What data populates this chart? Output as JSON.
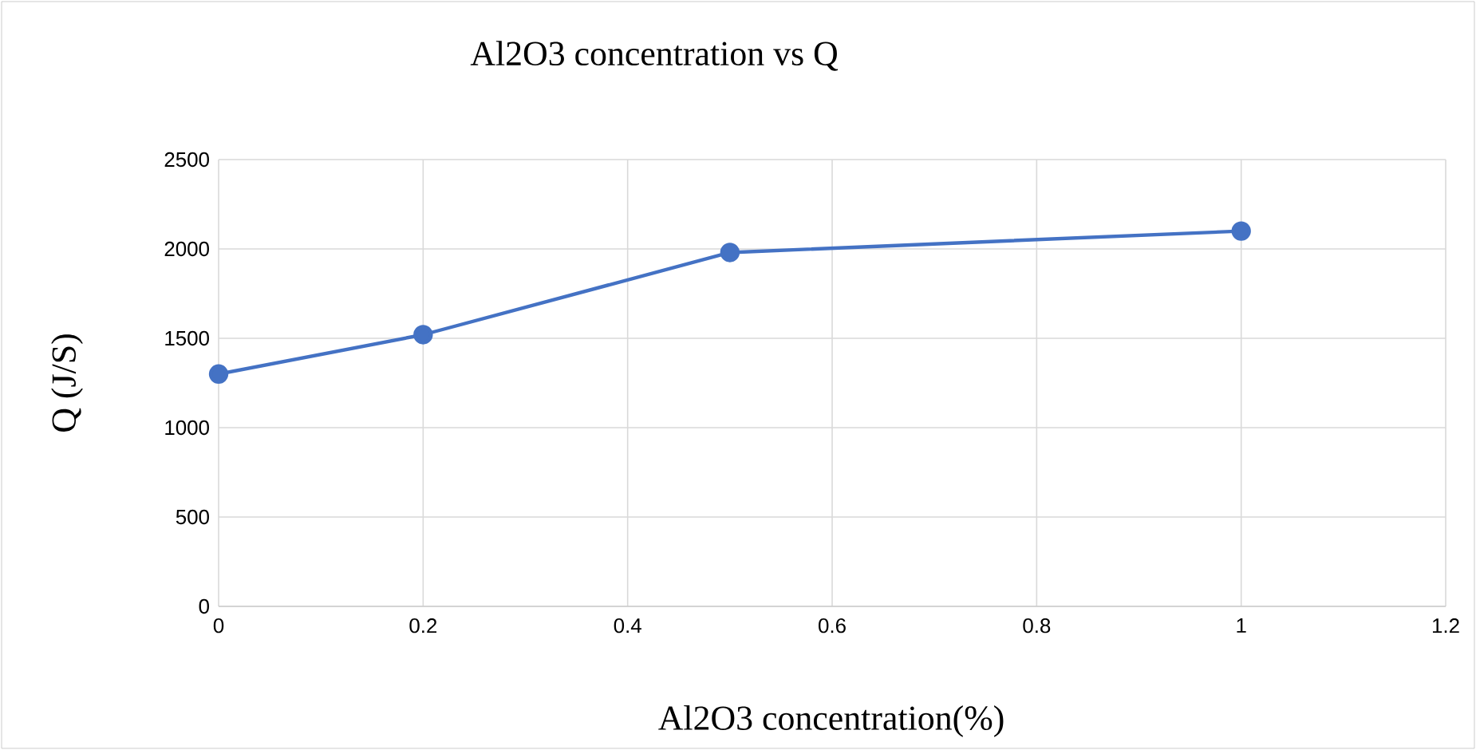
{
  "chart_data": {
    "type": "line",
    "title": "Al2O3 concentration vs Q",
    "xlabel": "Al2O3 concentration(%)",
    "ylabel": "Q (J/S)",
    "x": [
      0,
      0.2,
      0.5,
      1
    ],
    "series": [
      {
        "color": "#4472c4",
        "values": [
          1300,
          1520,
          1980,
          2100
        ]
      }
    ],
    "xlim": [
      0,
      1.2
    ],
    "xticks": [
      0,
      0.2,
      0.4,
      0.6,
      0.8,
      1,
      1.2
    ],
    "ylim": [
      0,
      2500
    ],
    "yticks": [
      0,
      500,
      1000,
      1500,
      2000,
      2500
    ],
    "grid": true,
    "marker": "circle",
    "line_style": "solid"
  }
}
